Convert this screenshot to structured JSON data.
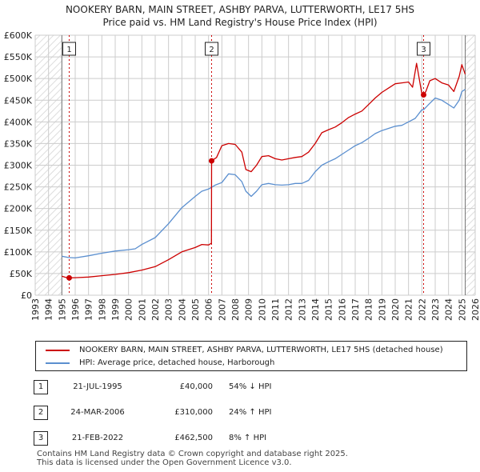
{
  "title_line1": "NOOKERY BARN, MAIN STREET, ASHBY PARVA, LUTTERWORTH, LE17 5HS",
  "title_line2": "Price paid vs. HM Land Registry's House Price Index (HPI)",
  "chart_data": {
    "type": "line",
    "ylim": [
      0,
      600000
    ],
    "xlim": [
      1993,
      2026
    ],
    "y_ticks": [
      0,
      50000,
      100000,
      150000,
      200000,
      250000,
      300000,
      350000,
      400000,
      450000,
      500000,
      550000,
      600000
    ],
    "y_tick_labels": [
      "£0",
      "£50K",
      "£100K",
      "£150K",
      "£200K",
      "£250K",
      "£300K",
      "£350K",
      "£400K",
      "£450K",
      "£500K",
      "£550K",
      "£600K"
    ],
    "x_ticks": [
      1993,
      1994,
      1995,
      1996,
      1997,
      1998,
      1999,
      2000,
      2001,
      2002,
      2003,
      2004,
      2005,
      2006,
      2007,
      2008,
      2009,
      2010,
      2011,
      2012,
      2013,
      2014,
      2015,
      2016,
      2017,
      2018,
      2019,
      2020,
      2021,
      2022,
      2023,
      2024,
      2025,
      2026
    ],
    "data_start": 1995.0,
    "data_end": 2025.25,
    "grid": true,
    "series": [
      {
        "name": "NOOKERY BARN, MAIN STREET, ASHBY PARVA, LUTTERWORTH, LE17 5HS (detached house)",
        "color": "#cc0000",
        "points": [
          [
            1995.0,
            44000
          ],
          [
            1995.3,
            41000
          ],
          [
            1995.55,
            40000
          ],
          [
            1996,
            40500
          ],
          [
            1997,
            42000
          ],
          [
            1998,
            45000
          ],
          [
            1999,
            48000
          ],
          [
            2000,
            52000
          ],
          [
            2001,
            58000
          ],
          [
            2002,
            66000
          ],
          [
            2003,
            82000
          ],
          [
            2004,
            100000
          ],
          [
            2005,
            110000
          ],
          [
            2005.5,
            117000
          ],
          [
            2006.0,
            116000
          ],
          [
            2006.22,
            120000
          ],
          [
            2006.23,
            310000
          ],
          [
            2006.6,
            318000
          ],
          [
            2007,
            345000
          ],
          [
            2007.5,
            350000
          ],
          [
            2008,
            348000
          ],
          [
            2008.5,
            330000
          ],
          [
            2008.8,
            290000
          ],
          [
            2009.2,
            285000
          ],
          [
            2009.6,
            300000
          ],
          [
            2010,
            320000
          ],
          [
            2010.5,
            322000
          ],
          [
            2011,
            315000
          ],
          [
            2011.5,
            312000
          ],
          [
            2012,
            315000
          ],
          [
            2012.5,
            318000
          ],
          [
            2013,
            320000
          ],
          [
            2013.5,
            330000
          ],
          [
            2014,
            350000
          ],
          [
            2014.5,
            375000
          ],
          [
            2015,
            382000
          ],
          [
            2015.5,
            388000
          ],
          [
            2016,
            398000
          ],
          [
            2016.5,
            410000
          ],
          [
            2017,
            418000
          ],
          [
            2017.5,
            425000
          ],
          [
            2018,
            440000
          ],
          [
            2018.5,
            455000
          ],
          [
            2019,
            468000
          ],
          [
            2019.5,
            478000
          ],
          [
            2020,
            488000
          ],
          [
            2020.5,
            490000
          ],
          [
            2021,
            492000
          ],
          [
            2021.3,
            480000
          ],
          [
            2021.6,
            535000
          ],
          [
            2021.8,
            500000
          ],
          [
            2022.0,
            465000
          ],
          [
            2022.13,
            462500
          ],
          [
            2022.3,
            470000
          ],
          [
            2022.6,
            495000
          ],
          [
            2023,
            500000
          ],
          [
            2023.5,
            490000
          ],
          [
            2024,
            485000
          ],
          [
            2024.4,
            470000
          ],
          [
            2024.8,
            505000
          ],
          [
            2025.0,
            532000
          ],
          [
            2025.25,
            510000
          ]
        ]
      },
      {
        "name": "HPI: Average price, detached house, Harborough",
        "color": "#5b8fcf",
        "points": [
          [
            1995.0,
            90000
          ],
          [
            1995.5,
            87000
          ],
          [
            1996,
            86000
          ],
          [
            1997,
            91000
          ],
          [
            1998,
            97000
          ],
          [
            1999,
            102000
          ],
          [
            2000,
            105000
          ],
          [
            2000.5,
            107000
          ],
          [
            2001,
            117000
          ],
          [
            2002,
            133000
          ],
          [
            2003,
            165000
          ],
          [
            2004,
            202000
          ],
          [
            2005,
            228000
          ],
          [
            2005.5,
            240000
          ],
          [
            2006,
            245000
          ],
          [
            2006.5,
            254000
          ],
          [
            2007,
            260000
          ],
          [
            2007.5,
            280000
          ],
          [
            2008,
            278000
          ],
          [
            2008.5,
            262000
          ],
          [
            2008.8,
            240000
          ],
          [
            2009.2,
            228000
          ],
          [
            2009.6,
            240000
          ],
          [
            2010,
            255000
          ],
          [
            2010.5,
            258000
          ],
          [
            2011,
            255000
          ],
          [
            2011.5,
            254000
          ],
          [
            2012,
            255000
          ],
          [
            2012.5,
            258000
          ],
          [
            2013,
            258000
          ],
          [
            2013.5,
            265000
          ],
          [
            2014,
            285000
          ],
          [
            2014.5,
            300000
          ],
          [
            2015,
            308000
          ],
          [
            2015.5,
            315000
          ],
          [
            2016,
            325000
          ],
          [
            2016.5,
            335000
          ],
          [
            2017,
            345000
          ],
          [
            2017.5,
            352000
          ],
          [
            2018,
            362000
          ],
          [
            2018.5,
            373000
          ],
          [
            2019,
            380000
          ],
          [
            2019.5,
            385000
          ],
          [
            2020,
            390000
          ],
          [
            2020.5,
            392000
          ],
          [
            2021,
            400000
          ],
          [
            2021.5,
            408000
          ],
          [
            2022.0,
            428000
          ],
          [
            2022.13,
            428000
          ],
          [
            2022.5,
            440000
          ],
          [
            2023,
            455000
          ],
          [
            2023.5,
            450000
          ],
          [
            2024,
            440000
          ],
          [
            2024.4,
            432000
          ],
          [
            2024.8,
            450000
          ],
          [
            2025.0,
            470000
          ],
          [
            2025.25,
            475000
          ]
        ]
      }
    ],
    "sales": [
      {
        "num": "1",
        "x": 1995.55,
        "price": 40000
      },
      {
        "num": "2",
        "x": 2006.23,
        "price": 310000
      },
      {
        "num": "3",
        "x": 2022.13,
        "price": 462500
      }
    ]
  },
  "legend": {
    "property_label": "NOOKERY BARN, MAIN STREET, ASHBY PARVA, LUTTERWORTH, LE17 5HS (detached house)",
    "hpi_label": "HPI: Average price, detached house, Harborough"
  },
  "sales_table": [
    {
      "num": "1",
      "date": "21-JUL-1995",
      "price": "£40,000",
      "hpi": "54% ↓ HPI"
    },
    {
      "num": "2",
      "date": "24-MAR-2006",
      "price": "£310,000",
      "hpi": "24% ↑ HPI"
    },
    {
      "num": "3",
      "date": "21-FEB-2022",
      "price": "£462,500",
      "hpi": "8% ↑ HPI"
    }
  ],
  "footer_line1": "Contains HM Land Registry data © Crown copyright and database right 2025.",
  "footer_line2": "This data is licensed under the Open Government Licence v3.0.",
  "colors": {
    "property": "#cc0000",
    "hpi": "#5b8fcf",
    "grid": "#cccccc",
    "hatch": "#dddddd"
  }
}
